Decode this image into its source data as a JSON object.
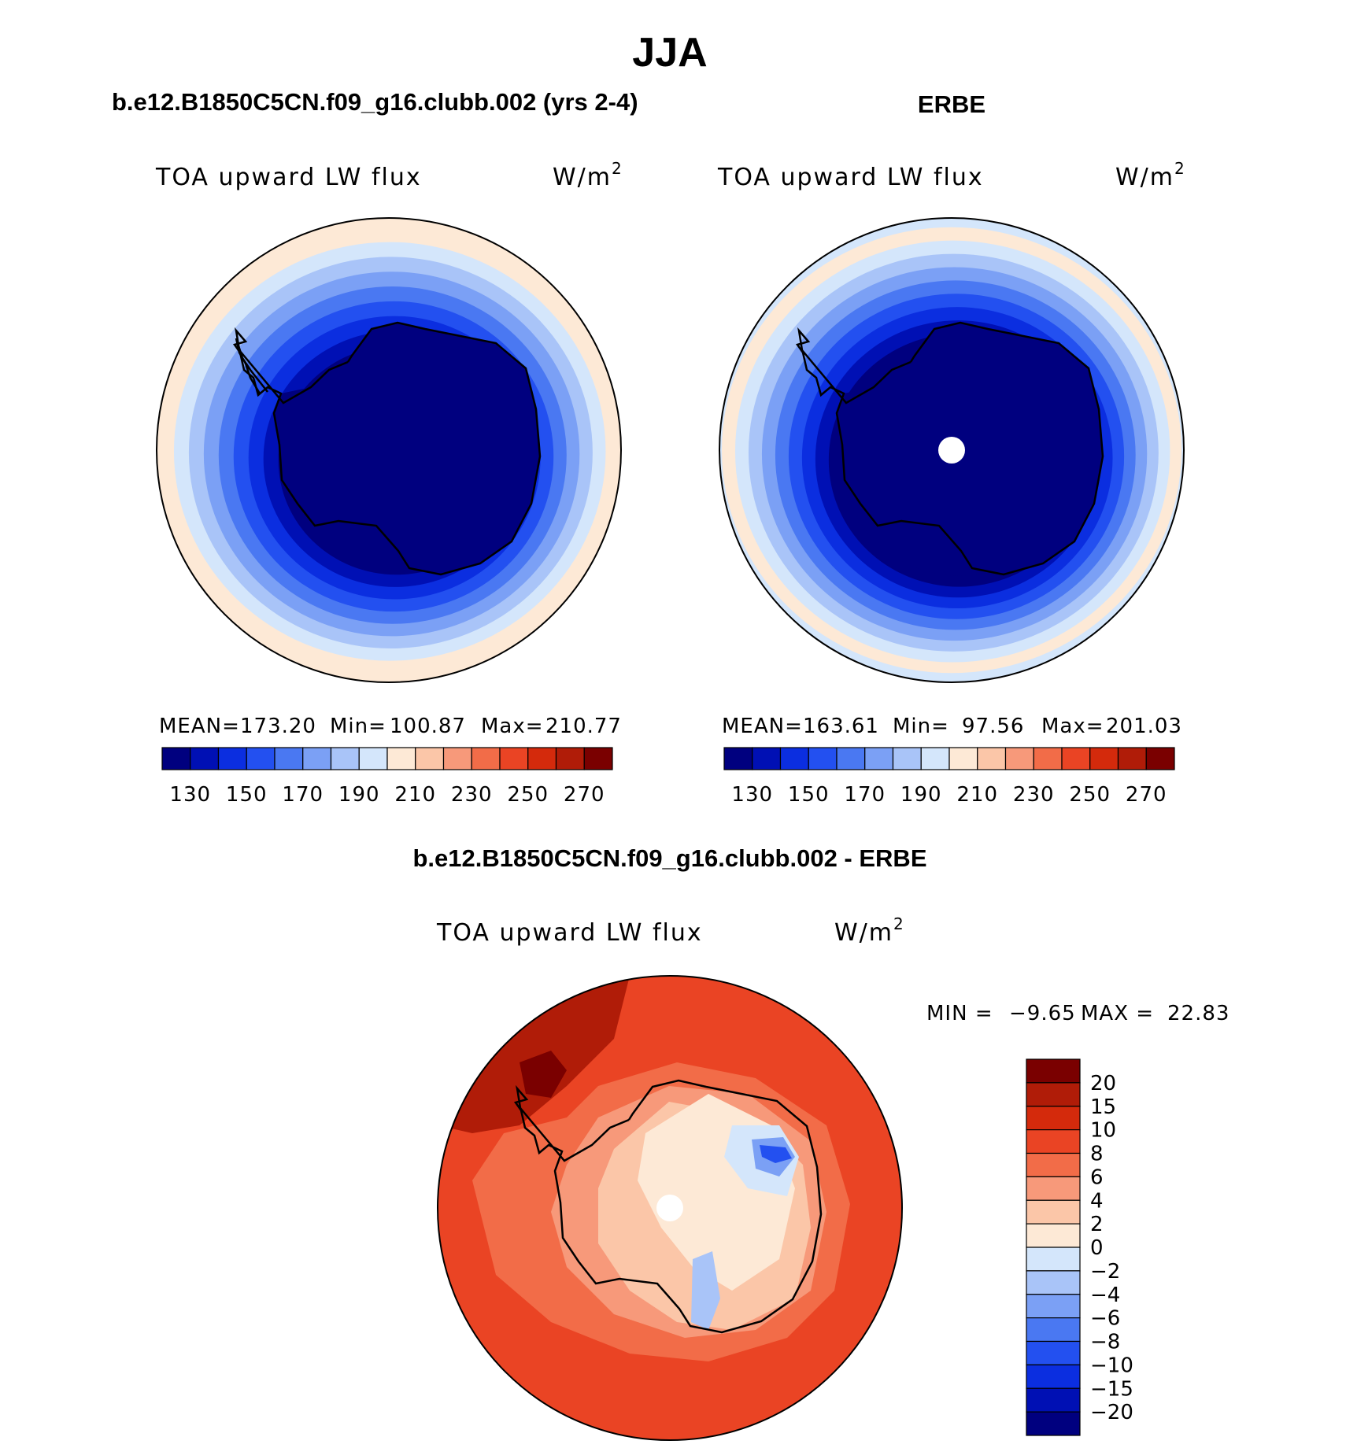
{
  "chart_data": {
    "type": "heatmap",
    "title": "JJA",
    "panels": [
      {
        "id": "model",
        "header": "b.e12.B1850C5CN.f09_g16.clubb.002 (yrs 2-4)",
        "variable": "TOA upward LW flux",
        "units_base": "W/m",
        "units_exp": "2",
        "stats": {
          "mean_label": "MEAN=",
          "mean": "173.20",
          "min_label": "Min=",
          "min": "100.87",
          "max_label": "Max=",
          "max": "210.77"
        },
        "contour_rings": [
          128,
          135,
          145,
          155,
          165,
          175,
          185,
          195,
          205
        ]
      },
      {
        "id": "obs",
        "header": "ERBE",
        "variable": "TOA upward LW flux",
        "units_base": "W/m",
        "units_exp": "2",
        "stats": {
          "mean_label": "MEAN=",
          "mean": "163.61",
          "min_label": "Min=",
          "min": "97.56",
          "max_label": "Max=",
          "max": "201.03"
        },
        "contour_rings": [
          120,
          128,
          135,
          145,
          155,
          165,
          175,
          185,
          195,
          205
        ]
      },
      {
        "id": "diff",
        "header": "b.e12.B1850C5CN.f09_g16.clubb.002 - ERBE",
        "variable": "TOA upward LW flux",
        "units_base": "W/m",
        "units_exp": "2",
        "stats": {
          "min_label": "MIN =",
          "min": "−9.65",
          "max_label": "MAX =",
          "max": "22.83"
        }
      }
    ],
    "colorbar_abs": {
      "orientation": "horizontal",
      "levels": [
        130,
        140,
        150,
        160,
        170,
        180,
        190,
        200,
        210,
        220,
        230,
        240,
        250,
        260,
        270
      ],
      "tick_labels": [
        "130",
        "150",
        "170",
        "190",
        "210",
        "230",
        "250",
        "270"
      ],
      "colors": [
        "#00007f",
        "#0010b4",
        "#0b2ee0",
        "#2350f0",
        "#4a78f2",
        "#7ba0f5",
        "#a9c4f8",
        "#d4e6fb",
        "#fde9d6",
        "#fbc6a8",
        "#f7997a",
        "#f26c48",
        "#ea4424",
        "#d42a0c",
        "#b01c08",
        "#7a0000"
      ]
    },
    "colorbar_diff": {
      "orientation": "vertical",
      "levels": [
        -20,
        -15,
        -10,
        -8,
        -6,
        -4,
        -2,
        0,
        2,
        4,
        6,
        8,
        10,
        15,
        20
      ],
      "tick_labels": [
        "20",
        "15",
        "10",
        "8",
        "6",
        "4",
        "2",
        "0",
        "−2",
        "−4",
        "−6",
        "−8",
        "−10",
        "−15",
        "−20"
      ],
      "colors": [
        "#00007f",
        "#0010b4",
        "#0b2ee0",
        "#2350f0",
        "#4a78f2",
        "#7ba0f5",
        "#a9c4f8",
        "#d4e6fb",
        "#fde9d6",
        "#fbc6a8",
        "#f7997a",
        "#f26c48",
        "#ea4424",
        "#d42a0c",
        "#b01c08",
        "#7a0000"
      ]
    }
  }
}
